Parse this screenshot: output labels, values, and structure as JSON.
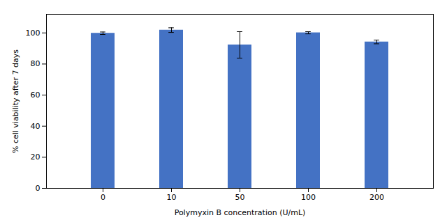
{
  "chart_data": {
    "type": "bar",
    "xlabel": "Polymyxin B concentration (U/mL)",
    "ylabel": "% cell viability after 7 days",
    "categories": [
      "0",
      "10",
      "50",
      "100",
      "200"
    ],
    "values": [
      99.8,
      101.8,
      92.3,
      100.1,
      94.2
    ],
    "errors": [
      0.8,
      1.5,
      8.5,
      0.7,
      1.2
    ],
    "color": "#4472C4",
    "ylim": [
      0,
      112
    ],
    "yticks": [
      0,
      20,
      40,
      60,
      80,
      100
    ],
    "grid": false
  }
}
